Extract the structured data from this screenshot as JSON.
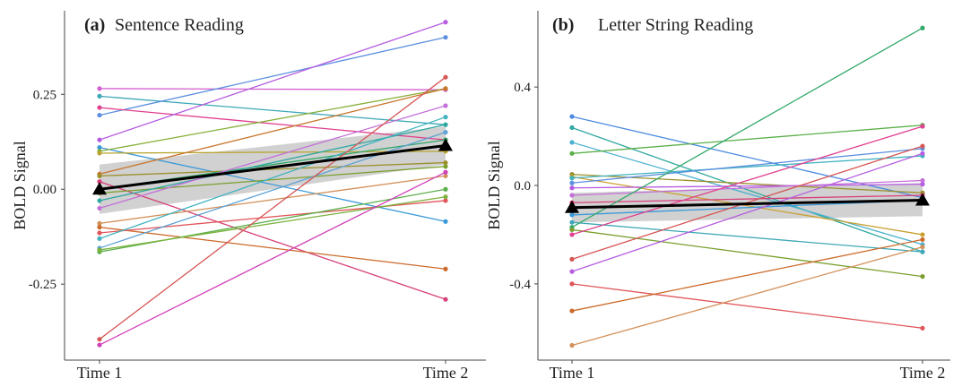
{
  "chart_data": [
    {
      "type": "line",
      "panel_label": "(a)",
      "title": "Sentence Reading",
      "xlabel": "",
      "ylabel": "BOLD Signal",
      "categories": [
        "Time 1",
        "Time 2"
      ],
      "yticks": [
        "0.25",
        "0.00",
        "-0.25"
      ],
      "ytick_values": [
        0.25,
        0.0,
        -0.25
      ],
      "ylim": [
        -0.45,
        0.47
      ],
      "mean": [
        0.0,
        0.115
      ],
      "ci_lower": [
        -0.065,
        0.065
      ],
      "ci_upper": [
        0.065,
        0.165
      ],
      "series": [
        {
          "color": "#d45fd0",
          "values": [
            0.265,
            0.262
          ]
        },
        {
          "color": "#3ea8b6",
          "values": [
            0.245,
            0.17
          ]
        },
        {
          "color": "#5c8fe0",
          "values": [
            0.195,
            0.4
          ]
        },
        {
          "color": "#e0408f",
          "values": [
            0.215,
            0.13
          ]
        },
        {
          "color": "#b65ce0",
          "values": [
            0.13,
            0.44
          ]
        },
        {
          "color": "#3a9ad9",
          "values": [
            0.11,
            -0.085
          ]
        },
        {
          "color": "#88b03a",
          "values": [
            0.1,
            0.265
          ]
        },
        {
          "color": "#b8a530",
          "values": [
            0.095,
            0.1
          ]
        },
        {
          "color": "#c9772e",
          "values": [
            0.04,
            0.265
          ]
        },
        {
          "color": "#9a8f2a",
          "values": [
            0.035,
            0.07
          ]
        },
        {
          "color": "#d6407a",
          "values": [
            0.02,
            -0.29
          ]
        },
        {
          "color": "#32a86a",
          "values": [
            0.0,
            0.13
          ]
        },
        {
          "color": "#7a9f2e",
          "values": [
            -0.01,
            0.06
          ]
        },
        {
          "color": "#2fa8a0",
          "values": [
            -0.03,
            0.17
          ]
        },
        {
          "color": "#c470d8",
          "values": [
            -0.05,
            0.22
          ]
        },
        {
          "color": "#d2905a",
          "values": [
            -0.09,
            0.035
          ]
        },
        {
          "color": "#cc6a2a",
          "values": [
            -0.1,
            -0.21
          ]
        },
        {
          "color": "#e0555a",
          "values": [
            -0.115,
            -0.03
          ]
        },
        {
          "color": "#40b3c0",
          "values": [
            -0.13,
            0.19
          ]
        },
        {
          "color": "#5da3d5",
          "values": [
            -0.155,
            0.15
          ]
        },
        {
          "color": "#5bb04a",
          "values": [
            -0.165,
            0.0
          ]
        },
        {
          "color": "#7cb23c",
          "values": [
            -0.16,
            -0.02
          ]
        },
        {
          "color": "#d65555",
          "values": [
            -0.395,
            0.295
          ]
        },
        {
          "color": "#d040b8",
          "values": [
            -0.41,
            0.045
          ]
        }
      ]
    },
    {
      "type": "line",
      "panel_label": "(b)",
      "title": "Letter String Reading",
      "xlabel": "",
      "ylabel": "BOLD Signal",
      "categories": [
        "Time 1",
        "Time 2"
      ],
      "yticks": [
        "0.4",
        "0.0",
        "-0.4"
      ],
      "ytick_values": [
        0.4,
        0.0,
        -0.4
      ],
      "ylim": [
        -0.71,
        0.71
      ],
      "mean": [
        -0.09,
        -0.06
      ],
      "ci_lower": [
        -0.15,
        -0.125
      ],
      "ci_upper": [
        -0.03,
        0.01
      ],
      "series": [
        {
          "color": "#4e8be0",
          "values": [
            0.28,
            -0.05
          ]
        },
        {
          "color": "#2fa8a0",
          "values": [
            0.235,
            -0.27
          ]
        },
        {
          "color": "#4ab0d0",
          "values": [
            0.175,
            -0.24
          ]
        },
        {
          "color": "#5bb04a",
          "values": [
            0.13,
            0.245
          ]
        },
        {
          "color": "#9a8f2a",
          "values": [
            0.045,
            -0.03
          ]
        },
        {
          "color": "#c9a030",
          "values": [
            0.035,
            -0.2
          ]
        },
        {
          "color": "#40b3c0",
          "values": [
            0.03,
            0.12
          ]
        },
        {
          "color": "#5c8fe0",
          "values": [
            0.01,
            0.15
          ]
        },
        {
          "color": "#b65ce0",
          "values": [
            -0.01,
            0.005
          ]
        },
        {
          "color": "#c470d8",
          "values": [
            -0.04,
            0.02
          ]
        },
        {
          "color": "#d6407a",
          "values": [
            -0.07,
            -0.04
          ]
        },
        {
          "color": "#3a9ad9",
          "values": [
            -0.12,
            -0.06
          ]
        },
        {
          "color": "#3ea8b6",
          "values": [
            -0.15,
            -0.27
          ]
        },
        {
          "color": "#32a86a",
          "values": [
            -0.17,
            0.64
          ]
        },
        {
          "color": "#7a9f2e",
          "values": [
            -0.18,
            -0.37
          ]
        },
        {
          "color": "#e0408f",
          "values": [
            -0.2,
            0.24
          ]
        },
        {
          "color": "#d65555",
          "values": [
            -0.3,
            0.16
          ]
        },
        {
          "color": "#b65ce0",
          "values": [
            -0.35,
            0.13
          ]
        },
        {
          "color": "#e0555a",
          "values": [
            -0.4,
            -0.58
          ]
        },
        {
          "color": "#cc6a2a",
          "values": [
            -0.51,
            -0.22
          ]
        },
        {
          "color": "#d2905a",
          "values": [
            -0.65,
            -0.25
          ]
        }
      ]
    }
  ]
}
